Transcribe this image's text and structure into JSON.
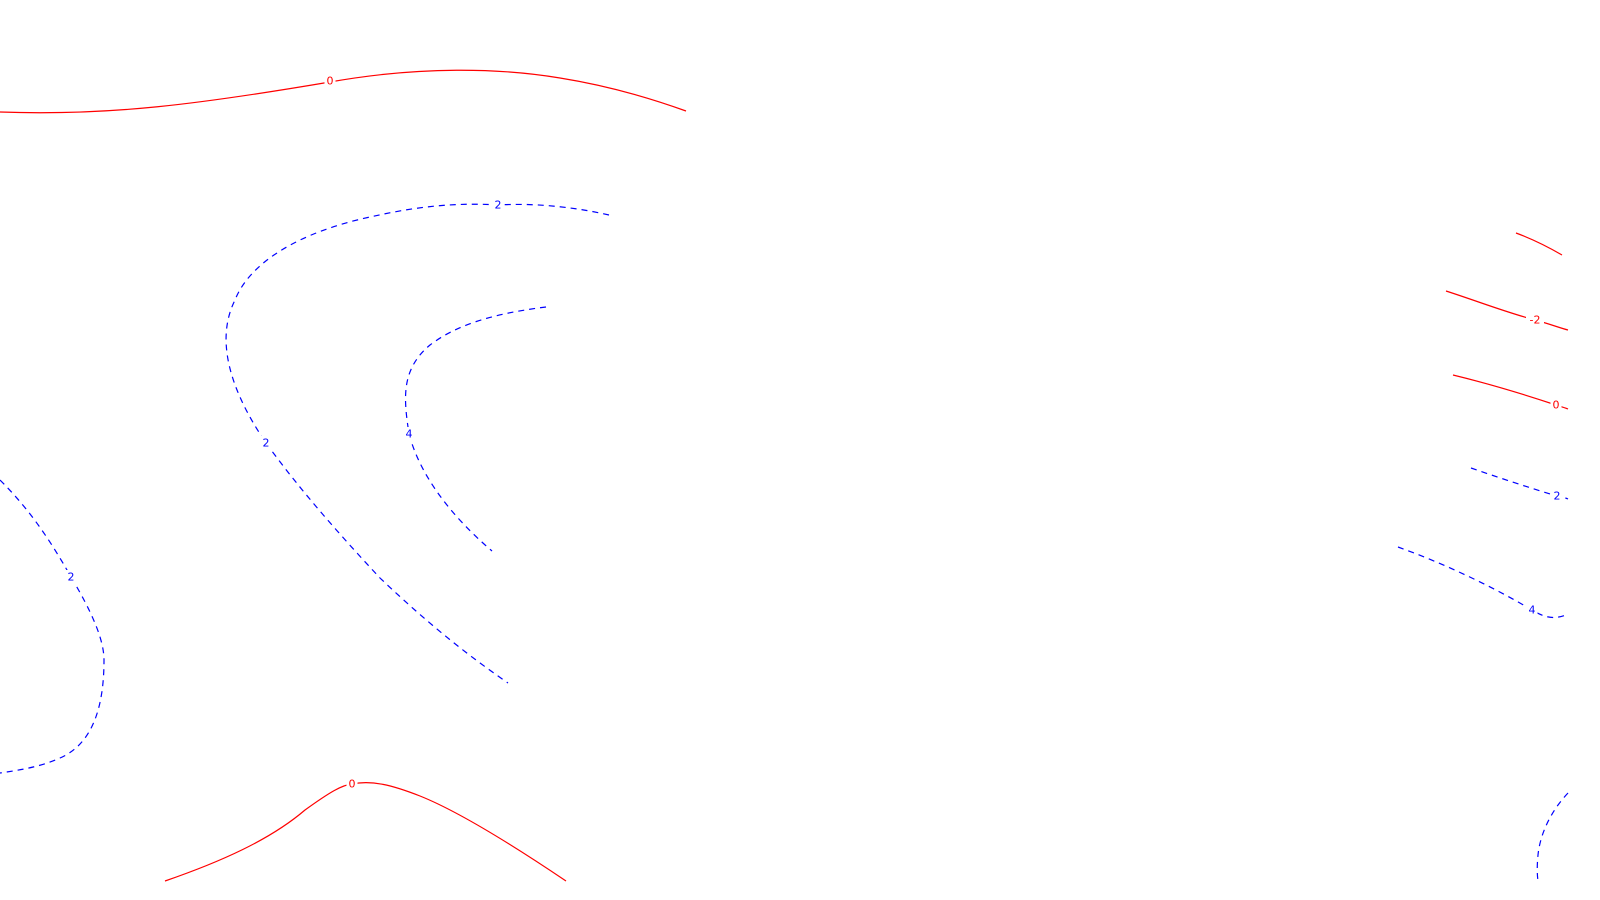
{
  "chart_data": {
    "type": "contour",
    "title": "",
    "xlabel": "",
    "ylabel": "",
    "grid": false,
    "legend": "none",
    "colors": {
      "positive": "#ff0000",
      "negative": "#0000ff"
    },
    "line_styles": {
      "positive": "solid",
      "negative": "dashed"
    },
    "contours": [
      {
        "id": "c-top-0",
        "level": 0,
        "label": "0",
        "sign": "positive"
      },
      {
        "id": "c-left-2-a",
        "level": 2,
        "label": "2",
        "sign": "negative"
      },
      {
        "id": "c-left-2-b",
        "level": 2,
        "label": "2",
        "sign": "negative"
      },
      {
        "id": "c-left-4",
        "level": 4,
        "label": "4",
        "sign": "negative"
      },
      {
        "id": "c-outer-2",
        "level": 2,
        "label": "2",
        "sign": "negative"
      },
      {
        "id": "c-bottom-0",
        "level": 0,
        "label": "0",
        "sign": "positive"
      },
      {
        "id": "c-right-red-1",
        "level": null,
        "label": "",
        "sign": "positive"
      },
      {
        "id": "c-right-m2",
        "level": -2,
        "label": "-2",
        "sign": "positive"
      },
      {
        "id": "c-right-0",
        "level": 0,
        "label": "0",
        "sign": "positive"
      },
      {
        "id": "c-right-2",
        "level": 2,
        "label": "2",
        "sign": "negative"
      },
      {
        "id": "c-right-4",
        "level": 4,
        "label": "4",
        "sign": "negative"
      },
      {
        "id": "c-right-bottom",
        "level": null,
        "label": "",
        "sign": "negative"
      }
    ]
  }
}
